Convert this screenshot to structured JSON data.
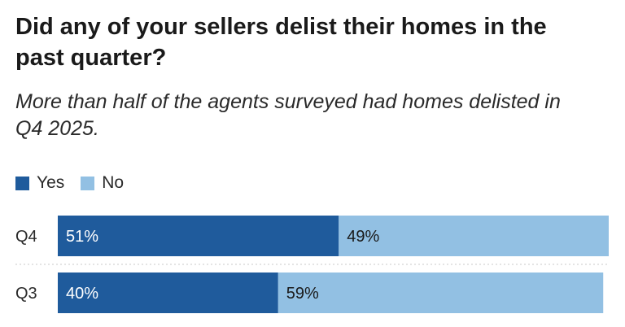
{
  "chart_data": {
    "type": "bar",
    "orientation": "horizontal",
    "stacked": true,
    "title": "Did any of your sellers delist their homes in the past quarter?",
    "subtitle": "More than half of the agents surveyed had homes delisted in Q4 2025.",
    "categories": [
      "Q4",
      "Q3"
    ],
    "series": [
      {
        "name": "Yes",
        "values": [
          51,
          40
        ],
        "labels": [
          "51%",
          "40%"
        ],
        "color": "#1f5b9c"
      },
      {
        "name": "No",
        "values": [
          49,
          59
        ],
        "labels": [
          "49%",
          "59%"
        ],
        "color": "#92c0e3"
      }
    ],
    "xlim": [
      0,
      100
    ],
    "legend_position": "top-left",
    "grid": false
  }
}
